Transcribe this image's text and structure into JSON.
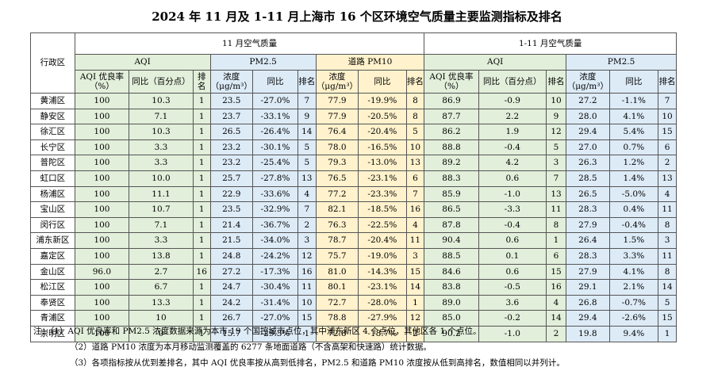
{
  "title": "2024 年 11 月及 1-11 月上海市 16 个区环境空气质量主要监测指标及排名",
  "header": {
    "district": "行政区",
    "nov_group": "11 月空气质量",
    "ytd_group": "1-11 月空气质量",
    "aqi": "AQI",
    "pm25": "PM2.5",
    "road_pm10": "道路 PM10",
    "aqi_rate": "AQI 优良率（%）",
    "yoy_pct_point": "同比（百分点）",
    "rank": "排名",
    "conc": "浓度（μg/m³）",
    "yoy": "同比"
  },
  "rows": [
    {
      "d": "黄浦区",
      "a": "100",
      "ay": "10.3",
      "ar": "1",
      "p": "23.5",
      "py": "-27.0%",
      "pr": "7",
      "r": "77.9",
      "ry": "-19.9%",
      "rr": "8",
      "ya": "86.9",
      "yay": "-0.9",
      "yar": "10",
      "yp": "27.2",
      "ypy": "-1.1%",
      "ypr": "7"
    },
    {
      "d": "静安区",
      "a": "100",
      "ay": "7.1",
      "ar": "1",
      "p": "23.7",
      "py": "-33.1%",
      "pr": "9",
      "r": "77.9",
      "ry": "-20.5%",
      "rr": "8",
      "ya": "87.7",
      "yay": "2.2",
      "yar": "9",
      "yp": "28.0",
      "ypy": "4.1%",
      "ypr": "10"
    },
    {
      "d": "徐汇区",
      "a": "100",
      "ay": "10.3",
      "ar": "1",
      "p": "26.5",
      "py": "-26.4%",
      "pr": "14",
      "r": "76.4",
      "ry": "-20.4%",
      "rr": "5",
      "ya": "86.2",
      "yay": "1.9",
      "yar": "12",
      "yp": "29.4",
      "ypy": "5.4%",
      "ypr": "15"
    },
    {
      "d": "长宁区",
      "a": "100",
      "ay": "3.3",
      "ar": "1",
      "p": "23.2",
      "py": "-30.1%",
      "pr": "5",
      "r": "78.0",
      "ry": "-16.5%",
      "rr": "10",
      "ya": "88.8",
      "yay": "-0.4",
      "yar": "5",
      "yp": "27.0",
      "ypy": "0.7%",
      "ypr": "6"
    },
    {
      "d": "普陀区",
      "a": "100",
      "ay": "3.3",
      "ar": "1",
      "p": "23.2",
      "py": "-25.4%",
      "pr": "5",
      "r": "79.3",
      "ry": "-13.0%",
      "rr": "13",
      "ya": "89.2",
      "yay": "4.2",
      "yar": "3",
      "yp": "26.3",
      "ypy": "1.2%",
      "ypr": "2"
    },
    {
      "d": "虹口区",
      "a": "100",
      "ay": "10.0",
      "ar": "1",
      "p": "25.7",
      "py": "-27.8%",
      "pr": "13",
      "r": "76.5",
      "ry": "-23.1%",
      "rr": "6",
      "ya": "88.3",
      "yay": "0.6",
      "yar": "7",
      "yp": "28.5",
      "ypy": "1.4%",
      "ypr": "13"
    },
    {
      "d": "杨浦区",
      "a": "100",
      "ay": "11.1",
      "ar": "1",
      "p": "22.9",
      "py": "-33.6%",
      "pr": "4",
      "r": "77.2",
      "ry": "-23.3%",
      "rr": "7",
      "ya": "85.9",
      "yay": "-1.0",
      "yar": "13",
      "yp": "26.5",
      "ypy": "-5.0%",
      "ypr": "4"
    },
    {
      "d": "宝山区",
      "a": "100",
      "ay": "10.7",
      "ar": "1",
      "p": "23.5",
      "py": "-32.9%",
      "pr": "7",
      "r": "82.1",
      "ry": "-18.5%",
      "rr": "16",
      "ya": "86.5",
      "yay": "-3.3",
      "yar": "11",
      "yp": "28.3",
      "ypy": "0.4%",
      "ypr": "11"
    },
    {
      "d": "闵行区",
      "a": "100",
      "ay": "7.1",
      "ar": "1",
      "p": "21.4",
      "py": "-36.7%",
      "pr": "2",
      "r": "76.3",
      "ry": "-22.5%",
      "rr": "4",
      "ya": "87.8",
      "yay": "-0.4",
      "yar": "8",
      "yp": "27.9",
      "ypy": "-0.4%",
      "ypr": "8"
    },
    {
      "d": "浦东新区",
      "a": "100",
      "ay": "3.3",
      "ar": "1",
      "p": "21.5",
      "py": "-34.0%",
      "pr": "3",
      "r": "78.7",
      "ry": "-20.4%",
      "rr": "11",
      "ya": "90.4",
      "yay": "0.6",
      "yar": "1",
      "yp": "26.4",
      "ypy": "1.5%",
      "ypr": "3"
    },
    {
      "d": "嘉定区",
      "a": "100",
      "ay": "13.8",
      "ar": "1",
      "p": "24.8",
      "py": "-24.2%",
      "pr": "12",
      "r": "75.7",
      "ry": "-19.0%",
      "rr": "3",
      "ya": "88.5",
      "yay": "0.1",
      "yar": "6",
      "yp": "28.3",
      "ypy": "3.3%",
      "ypr": "11"
    },
    {
      "d": "金山区",
      "a": "96.0",
      "ay": "2.7",
      "ar": "16",
      "p": "27.2",
      "py": "-17.3%",
      "pr": "16",
      "r": "81.0",
      "ry": "-14.3%",
      "rr": "15",
      "ya": "84.6",
      "yay": "0.6",
      "yar": "15",
      "yp": "27.9",
      "ypy": "4.1%",
      "ypr": "8"
    },
    {
      "d": "松江区",
      "a": "100",
      "ay": "6.7",
      "ar": "1",
      "p": "24.7",
      "py": "-30.4%",
      "pr": "11",
      "r": "80.1",
      "ry": "-23.1%",
      "rr": "14",
      "ya": "83.8",
      "yay": "-0.5",
      "yar": "16",
      "yp": "29.1",
      "ypy": "2.1%",
      "ypr": "14"
    },
    {
      "d": "奉贤区",
      "a": "100",
      "ay": "13.3",
      "ar": "1",
      "p": "24.2",
      "py": "-31.4%",
      "pr": "10",
      "r": "72.7",
      "ry": "-28.0%",
      "rr": "1",
      "ya": "89.0",
      "yay": "3.6",
      "yar": "4",
      "yp": "26.8",
      "ypy": "-0.7%",
      "ypr": "5"
    },
    {
      "d": "青浦区",
      "a": "100",
      "ay": "10",
      "ar": "1",
      "p": "26.7",
      "py": "-27.0%",
      "pr": "15",
      "r": "78.8",
      "ry": "-27.9%",
      "rr": "12",
      "ya": "85.0",
      "yay": "-0.2",
      "yar": "14",
      "yp": "29.4",
      "ypy": "-2.6%",
      "ypr": "15"
    },
    {
      "d": "崇明区",
      "a": "100",
      "ay": "0",
      "ar": "1",
      "p": "15.7",
      "py": "-29.3%",
      "pr": "1",
      "r": "72.8",
      "ry": "-18.7%",
      "rr": "2",
      "ya": "90.2",
      "yay": "-1.0",
      "yar": "2",
      "yp": "19.8",
      "ypy": "9.4%",
      "ypr": "1"
    }
  ],
  "notes": [
    "注：（1）AQI 优良率和 PM2.5 浓度数据来源为本市 19 个国控城市点位，其中浦东新区 4 个点位，其他区各 1 个点位。",
    "（2）道路 PM10 浓度为本月移动监测覆盖的 6277 条地面道路（不含高架和快速路）统计数据。",
    "（3）各项指标按从优到差排名，其中 AQI 优良率按从高到低排名，PM2.5 和道路 PM10 浓度按从低到高排名，数值相同以并列计。"
  ]
}
